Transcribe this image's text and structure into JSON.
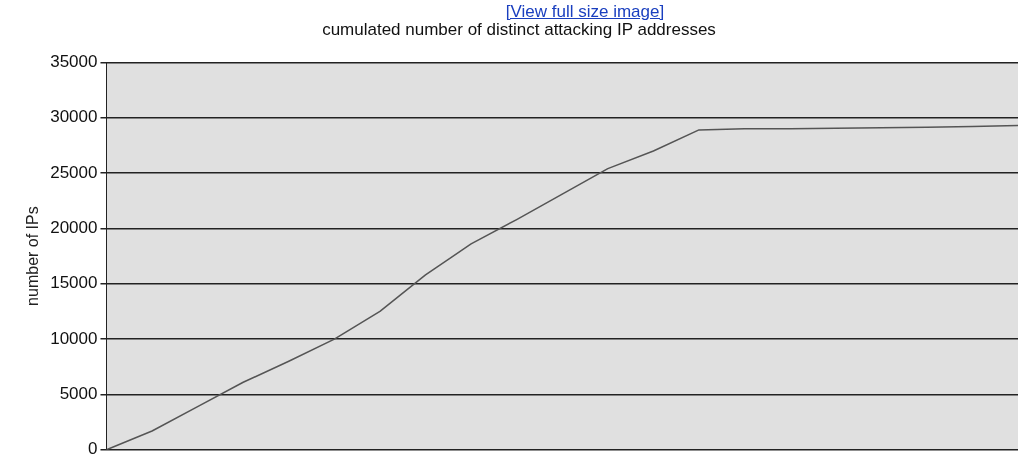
{
  "chart_data": {
    "type": "line",
    "title": "cumulated number of distinct attacking IP addresses",
    "ylabel": "number of IPs",
    "annotations": [
      "[View full size image]"
    ],
    "categories": [
      null,
      null,
      null,
      null,
      null,
      null,
      null,
      null,
      null,
      null,
      null,
      null,
      null,
      null,
      null,
      null,
      null,
      null,
      null,
      null,
      null
    ],
    "series": [
      {
        "color": "#555555",
        "values": [
          0,
          1700,
          3900,
          6100,
          8000,
          10000,
          12500,
          15800,
          18600,
          20800,
          23100,
          25400,
          27000,
          28900,
          29000,
          29000,
          29050,
          29100,
          29150,
          29200,
          29300
        ]
      }
    ],
    "ylim": [
      0,
      35000
    ],
    "yticks": [
      0,
      5000,
      10000,
      15000,
      20000,
      25000,
      30000,
      35000
    ],
    "grid": "y",
    "legend": false,
    "marker": "none",
    "line_style": "solid",
    "tick_labels": "y"
  }
}
